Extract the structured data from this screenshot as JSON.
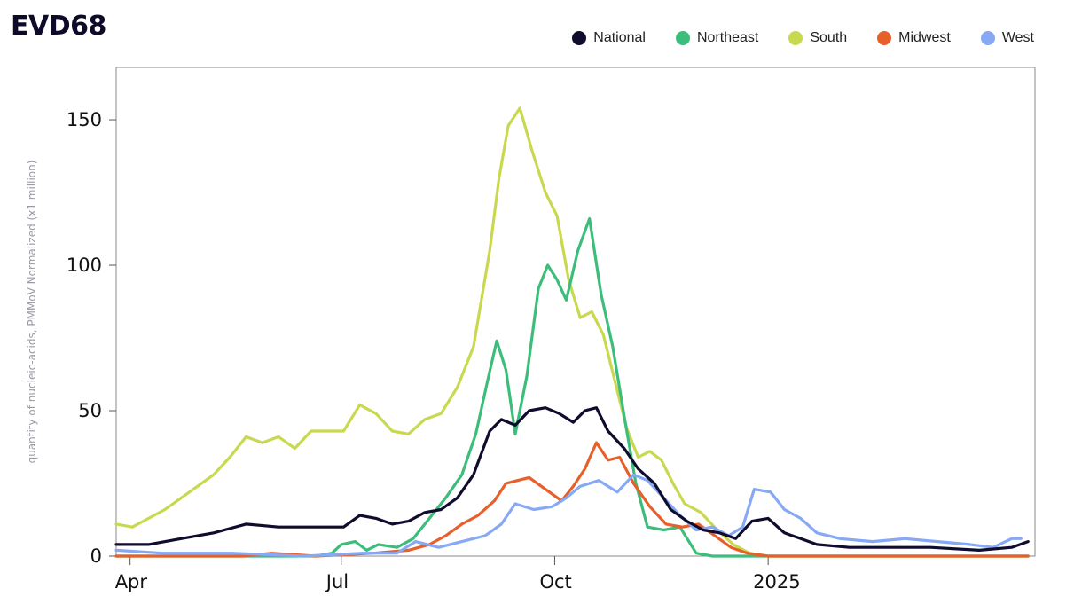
{
  "chart_data": {
    "type": "line",
    "title": "EVD68",
    "ylabel": "quantity of nucleic-acids, PMMoV Normalized (x1 million)",
    "xlabel": "",
    "ylim": [
      0,
      168
    ],
    "yticks": [
      0,
      50,
      100,
      150
    ],
    "ytick_labels": [
      "0",
      "50",
      "100",
      "150"
    ],
    "xlim": [
      "2024-03-26",
      "2025-04-26"
    ],
    "xticks": [
      "2024-04-01",
      "2024-07-01",
      "2024-10-01",
      "2025-01-01"
    ],
    "xtick_labels": [
      "Apr",
      "Jul",
      "Oct",
      "2025"
    ],
    "grid": false,
    "legend_position": "top-right",
    "series": [
      {
        "name": "South",
        "color": "#c9d94f",
        "points": [
          [
            "2024-03-26",
            11
          ],
          [
            "2024-04-02",
            10
          ],
          [
            "2024-04-09",
            13
          ],
          [
            "2024-04-16",
            16
          ],
          [
            "2024-04-23",
            20
          ],
          [
            "2024-04-30",
            24
          ],
          [
            "2024-05-07",
            28
          ],
          [
            "2024-05-14",
            34
          ],
          [
            "2024-05-21",
            41
          ],
          [
            "2024-05-28",
            39
          ],
          [
            "2024-06-04",
            41
          ],
          [
            "2024-06-11",
            37
          ],
          [
            "2024-06-18",
            43
          ],
          [
            "2024-06-25",
            43
          ],
          [
            "2024-07-02",
            43
          ],
          [
            "2024-07-09",
            52
          ],
          [
            "2024-07-16",
            49
          ],
          [
            "2024-07-23",
            43
          ],
          [
            "2024-07-30",
            42
          ],
          [
            "2024-08-06",
            47
          ],
          [
            "2024-08-13",
            49
          ],
          [
            "2024-08-20",
            58
          ],
          [
            "2024-08-27",
            72
          ],
          [
            "2024-09-03",
            105
          ],
          [
            "2024-09-07",
            130
          ],
          [
            "2024-09-11",
            148
          ],
          [
            "2024-09-16",
            154
          ],
          [
            "2024-09-21",
            140
          ],
          [
            "2024-09-27",
            125
          ],
          [
            "2024-10-02",
            117
          ],
          [
            "2024-10-07",
            95
          ],
          [
            "2024-10-12",
            82
          ],
          [
            "2024-10-17",
            84
          ],
          [
            "2024-10-22",
            76
          ],
          [
            "2024-10-27",
            60
          ],
          [
            "2024-11-01",
            44
          ],
          [
            "2024-11-06",
            34
          ],
          [
            "2024-11-11",
            36
          ],
          [
            "2024-11-16",
            33
          ],
          [
            "2024-11-21",
            25
          ],
          [
            "2024-11-26",
            18
          ],
          [
            "2024-12-03",
            15
          ],
          [
            "2024-12-10",
            9
          ],
          [
            "2024-12-17",
            4
          ],
          [
            "2024-12-24",
            1
          ],
          [
            "2025-01-01",
            0
          ],
          [
            "2025-02-01",
            0
          ],
          [
            "2025-03-01",
            0
          ],
          [
            "2025-04-23",
            0
          ]
        ]
      },
      {
        "name": "Northeast",
        "color": "#3dbd7c",
        "points": [
          [
            "2024-03-26",
            0
          ],
          [
            "2024-06-20",
            0
          ],
          [
            "2024-06-27",
            1
          ],
          [
            "2024-07-01",
            4
          ],
          [
            "2024-07-07",
            5
          ],
          [
            "2024-07-12",
            2
          ],
          [
            "2024-07-17",
            4
          ],
          [
            "2024-07-25",
            3
          ],
          [
            "2024-08-01",
            6
          ],
          [
            "2024-08-08",
            13
          ],
          [
            "2024-08-15",
            20
          ],
          [
            "2024-08-22",
            28
          ],
          [
            "2024-08-28",
            42
          ],
          [
            "2024-09-02",
            60
          ],
          [
            "2024-09-06",
            74
          ],
          [
            "2024-09-10",
            64
          ],
          [
            "2024-09-14",
            42
          ],
          [
            "2024-09-19",
            62
          ],
          [
            "2024-09-24",
            92
          ],
          [
            "2024-09-28",
            100
          ],
          [
            "2024-10-02",
            95
          ],
          [
            "2024-10-06",
            88
          ],
          [
            "2024-10-11",
            105
          ],
          [
            "2024-10-16",
            116
          ],
          [
            "2024-10-21",
            90
          ],
          [
            "2024-10-26",
            72
          ],
          [
            "2024-10-31",
            48
          ],
          [
            "2024-11-05",
            25
          ],
          [
            "2024-11-10",
            10
          ],
          [
            "2024-11-17",
            9
          ],
          [
            "2024-11-24",
            10
          ],
          [
            "2024-12-01",
            1
          ],
          [
            "2024-12-08",
            0
          ],
          [
            "2025-04-23",
            0
          ]
        ]
      },
      {
        "name": "Midwest",
        "color": "#e6602b",
        "points": [
          [
            "2024-03-26",
            0
          ],
          [
            "2024-05-20",
            0
          ],
          [
            "2024-06-01",
            1
          ],
          [
            "2024-06-20",
            0
          ],
          [
            "2024-07-15",
            1
          ],
          [
            "2024-07-30",
            2
          ],
          [
            "2024-08-08",
            4
          ],
          [
            "2024-08-15",
            7
          ],
          [
            "2024-08-22",
            11
          ],
          [
            "2024-08-29",
            14
          ],
          [
            "2024-09-05",
            19
          ],
          [
            "2024-09-10",
            25
          ],
          [
            "2024-09-15",
            26
          ],
          [
            "2024-09-20",
            27
          ],
          [
            "2024-09-27",
            23
          ],
          [
            "2024-10-04",
            19
          ],
          [
            "2024-10-09",
            24
          ],
          [
            "2024-10-14",
            30
          ],
          [
            "2024-10-19",
            39
          ],
          [
            "2024-10-24",
            33
          ],
          [
            "2024-10-29",
            34
          ],
          [
            "2024-11-04",
            25
          ],
          [
            "2024-11-11",
            17
          ],
          [
            "2024-11-18",
            11
          ],
          [
            "2024-11-25",
            10
          ],
          [
            "2024-12-02",
            11
          ],
          [
            "2024-12-09",
            7
          ],
          [
            "2024-12-16",
            3
          ],
          [
            "2024-12-23",
            1
          ],
          [
            "2025-01-01",
            0
          ],
          [
            "2025-04-23",
            0
          ]
        ]
      },
      {
        "name": "West",
        "color": "#86a8f5",
        "points": [
          [
            "2024-03-26",
            2
          ],
          [
            "2024-04-15",
            1
          ],
          [
            "2024-05-15",
            1
          ],
          [
            "2024-06-15",
            0
          ],
          [
            "2024-07-10",
            1
          ],
          [
            "2024-07-25",
            1
          ],
          [
            "2024-08-02",
            5
          ],
          [
            "2024-08-12",
            3
          ],
          [
            "2024-08-22",
            5
          ],
          [
            "2024-09-01",
            7
          ],
          [
            "2024-09-08",
            11
          ],
          [
            "2024-09-14",
            18
          ],
          [
            "2024-09-22",
            16
          ],
          [
            "2024-09-30",
            17
          ],
          [
            "2024-10-06",
            20
          ],
          [
            "2024-10-12",
            24
          ],
          [
            "2024-10-20",
            26
          ],
          [
            "2024-10-28",
            22
          ],
          [
            "2024-11-04",
            28
          ],
          [
            "2024-11-10",
            26
          ],
          [
            "2024-11-17",
            20
          ],
          [
            "2024-11-24",
            14
          ],
          [
            "2024-12-01",
            9
          ],
          [
            "2024-12-08",
            10
          ],
          [
            "2024-12-15",
            7
          ],
          [
            "2024-12-21",
            10
          ],
          [
            "2024-12-26",
            23
          ],
          [
            "2025-01-02",
            22
          ],
          [
            "2025-01-08",
            16
          ],
          [
            "2025-01-15",
            13
          ],
          [
            "2025-01-22",
            8
          ],
          [
            "2025-02-01",
            6
          ],
          [
            "2025-02-15",
            5
          ],
          [
            "2025-03-01",
            6
          ],
          [
            "2025-03-15",
            5
          ],
          [
            "2025-03-29",
            4
          ],
          [
            "2025-04-08",
            3
          ],
          [
            "2025-04-16",
            6
          ],
          [
            "2025-04-20",
            6
          ]
        ]
      },
      {
        "name": "National",
        "color": "#100c2e",
        "points": [
          [
            "2024-03-26",
            4
          ],
          [
            "2024-04-09",
            4
          ],
          [
            "2024-04-23",
            6
          ],
          [
            "2024-05-07",
            8
          ],
          [
            "2024-05-21",
            11
          ],
          [
            "2024-06-04",
            10
          ],
          [
            "2024-06-18",
            10
          ],
          [
            "2024-07-02",
            10
          ],
          [
            "2024-07-09",
            14
          ],
          [
            "2024-07-16",
            13
          ],
          [
            "2024-07-23",
            11
          ],
          [
            "2024-07-30",
            12
          ],
          [
            "2024-08-06",
            15
          ],
          [
            "2024-08-13",
            16
          ],
          [
            "2024-08-20",
            20
          ],
          [
            "2024-08-27",
            28
          ],
          [
            "2024-09-03",
            43
          ],
          [
            "2024-09-08",
            47
          ],
          [
            "2024-09-14",
            45
          ],
          [
            "2024-09-20",
            50
          ],
          [
            "2024-09-27",
            51
          ],
          [
            "2024-10-03",
            49
          ],
          [
            "2024-10-09",
            46
          ],
          [
            "2024-10-14",
            50
          ],
          [
            "2024-10-19",
            51
          ],
          [
            "2024-10-24",
            43
          ],
          [
            "2024-10-31",
            37
          ],
          [
            "2024-11-06",
            30
          ],
          [
            "2024-11-13",
            25
          ],
          [
            "2024-11-20",
            16
          ],
          [
            "2024-11-27",
            12
          ],
          [
            "2024-12-04",
            9
          ],
          [
            "2024-12-11",
            8
          ],
          [
            "2024-12-18",
            6
          ],
          [
            "2024-12-25",
            12
          ],
          [
            "2025-01-01",
            13
          ],
          [
            "2025-01-08",
            8
          ],
          [
            "2025-01-15",
            6
          ],
          [
            "2025-01-22",
            4
          ],
          [
            "2025-02-05",
            3
          ],
          [
            "2025-02-26",
            3
          ],
          [
            "2025-03-12",
            3
          ],
          [
            "2025-04-02",
            2
          ],
          [
            "2025-04-16",
            3
          ],
          [
            "2025-04-23",
            5
          ]
        ]
      }
    ],
    "legend": [
      {
        "name": "National",
        "color": "#100c2e"
      },
      {
        "name": "Northeast",
        "color": "#3dbd7c"
      },
      {
        "name": "South",
        "color": "#c9d94f"
      },
      {
        "name": "Midwest",
        "color": "#e6602b"
      },
      {
        "name": "West",
        "color": "#86a8f5"
      }
    ]
  }
}
